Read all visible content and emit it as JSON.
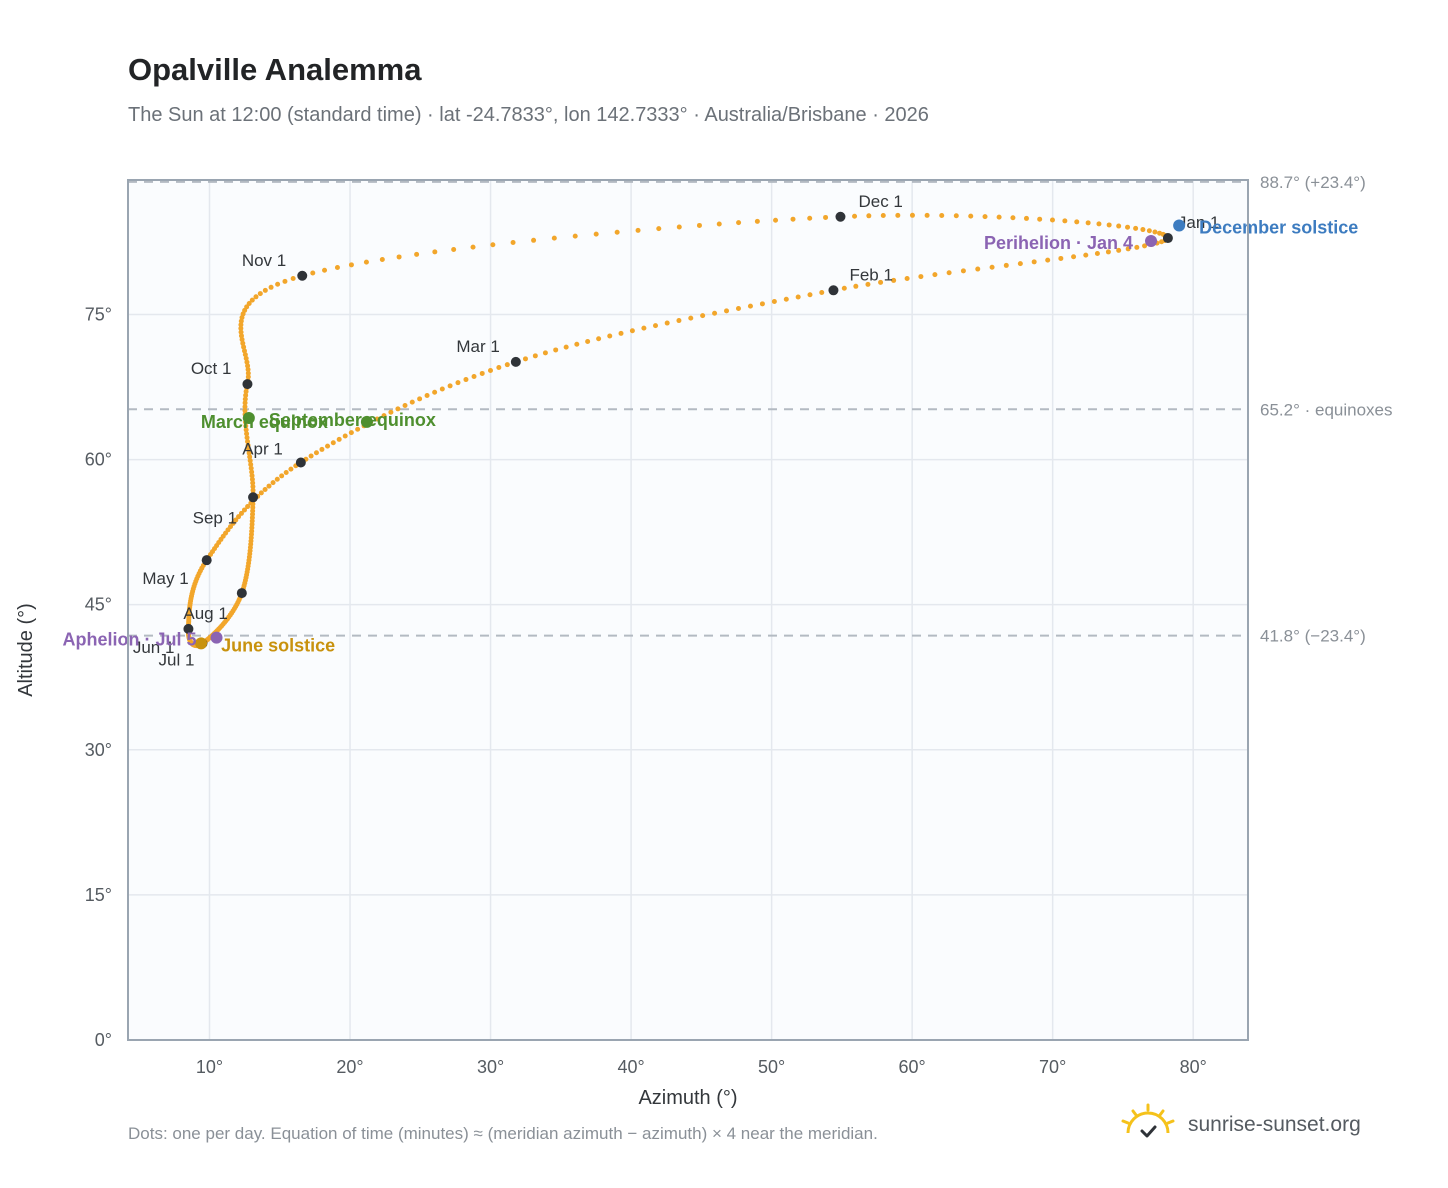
{
  "header": {
    "title": "Opalville Analemma",
    "subtitle": "The Sun at 12:00 (standard time) · lat -24.7833°, lon 142.7333° · Australia/Brisbane · 2026"
  },
  "footer": {
    "note": "Dots: one per day. Equation of time (minutes) ≈ (meridian azimuth − azimuth) × 4 near the meridian.",
    "brand": "sunrise-sunset.org"
  },
  "colors": {
    "path": "#f2a62b",
    "month": "#2f3338",
    "equinox": "#4e8f2f",
    "june": "#c8920e",
    "december": "#3d7cc0",
    "apsis": "#8b64b3",
    "plot_bg": "#fafcfe",
    "grid": "#e4e8ee",
    "frame": "#9aa5b1",
    "ref_line": "#b3bac2"
  },
  "chart_data": {
    "type": "scatter",
    "title": "Opalville Analemma",
    "xlabel": "Azimuth (°)",
    "ylabel": "Altitude (°)",
    "xlim": [
      4.2,
      83.9
    ],
    "ylim": [
      0,
      88.9
    ],
    "x_ticks": [
      10,
      20,
      30,
      40,
      50,
      60,
      70,
      80
    ],
    "x_tick_labels": [
      "10°",
      "20°",
      "30°",
      "40°",
      "50°",
      "60°",
      "70°",
      "80°"
    ],
    "y_ticks": [
      0,
      15,
      30,
      45,
      60,
      75
    ],
    "y_tick_labels": [
      "0°",
      "15°",
      "30°",
      "45°",
      "60°",
      "75°"
    ],
    "grid": true,
    "reference_lines": [
      {
        "y": 88.7,
        "label": "88.7° (+23.4°)"
      },
      {
        "y": 65.2,
        "label": "65.2° · equinoxes"
      },
      {
        "y": 41.8,
        "label": "41.8° (−23.4°)"
      }
    ],
    "months": [
      {
        "label": "Jan 1",
        "x": 78.2,
        "y": 82.9
      },
      {
        "label": "Feb 1",
        "x": 54.4,
        "y": 77.5
      },
      {
        "label": "Mar 1",
        "x": 31.8,
        "y": 70.1
      },
      {
        "label": "Apr 1",
        "x": 16.5,
        "y": 59.7
      },
      {
        "label": "May 1",
        "x": 9.8,
        "y": 49.6
      },
      {
        "label": "Jun 1",
        "x": 8.5,
        "y": 42.5
      },
      {
        "label": "Jul 1",
        "x": 9.5,
        "y": 41.0
      },
      {
        "label": "Aug 1",
        "x": 12.3,
        "y": 46.2
      },
      {
        "label": "Sep 1",
        "x": 13.1,
        "y": 56.1
      },
      {
        "label": "Oct 1",
        "x": 12.7,
        "y": 67.8
      },
      {
        "label": "Nov 1",
        "x": 16.6,
        "y": 79.0
      },
      {
        "label": "Dec 1",
        "x": 54.9,
        "y": 85.1
      }
    ],
    "events": [
      {
        "label": "March equinox",
        "x": 12.8,
        "y": 64.3,
        "color": "#4e8f2f"
      },
      {
        "label": "September equinox",
        "x": 21.2,
        "y": 63.9,
        "color": "#4e8f2f"
      },
      {
        "label": "June solstice",
        "x": 9.4,
        "y": 41.0,
        "color": "#c8920e"
      },
      {
        "label": "December solstice",
        "x": 79.0,
        "y": 84.2,
        "color": "#3d7cc0"
      },
      {
        "label": "Perihelion · Jan 4",
        "x": 77.0,
        "y": 82.6,
        "color": "#8b64b3"
      },
      {
        "label": "Aphelion · Jul 5",
        "x": 10.5,
        "y": 41.6,
        "color": "#8b64b3"
      }
    ]
  }
}
